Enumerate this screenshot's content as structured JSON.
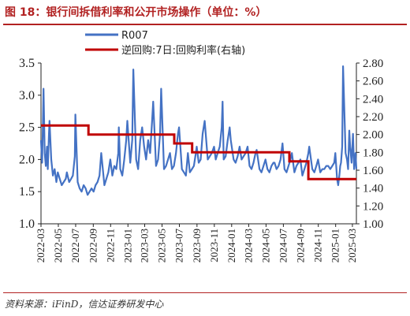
{
  "header": {
    "title": "图 18：银行间拆借利率和公开市场操作（单位：%）"
  },
  "footer": {
    "source": "资料来源：iFinD，信达证券研发中心"
  },
  "chart_data": {
    "type": "line",
    "title": "图 18：银行间拆借利率和公开市场操作（单位：%）",
    "xlabel": "",
    "ylabel": "",
    "x_ticks": [
      "2022-03",
      "2022-05",
      "2022-07",
      "2022-09",
      "2022-11",
      "2023-01",
      "2023-03",
      "2023-05",
      "2023-07",
      "2023-09",
      "2023-11",
      "2024-01",
      "2024-03",
      "2024-05",
      "2024-07",
      "2024-09",
      "2024-11",
      "2025-01",
      "2025-03"
    ],
    "y_left": {
      "ylim": [
        1.0,
        3.5
      ],
      "ticks": [
        "1.0",
        "1.5",
        "2.0",
        "2.5",
        "3.0",
        "3.5"
      ]
    },
    "y_right": {
      "ylim": [
        1.0,
        2.8
      ],
      "ticks": [
        "1.00",
        "1.20",
        "1.40",
        "1.60",
        "1.80",
        "2.00",
        "2.20",
        "2.40",
        "2.60",
        "2.80"
      ]
    },
    "grid": false,
    "legend": "top-center",
    "colors": {
      "r007": "#4472c4",
      "rr7": "#c00000"
    },
    "series": [
      {
        "name": "R007",
        "axis": "left",
        "x": [
          "2022-03-01",
          "2022-03-05",
          "2022-03-08",
          "2022-03-10",
          "2022-03-14",
          "2022-03-18",
          "2022-03-22",
          "2022-03-25",
          "2022-03-29",
          "2022-03-31",
          "2022-04-06",
          "2022-04-12",
          "2022-04-18",
          "2022-04-24",
          "2022-04-29",
          "2022-05-06",
          "2022-05-13",
          "2022-05-20",
          "2022-05-27",
          "2022-05-31",
          "2022-06-08",
          "2022-06-15",
          "2022-06-21",
          "2022-06-28",
          "2022-06-30",
          "2022-07-08",
          "2022-07-15",
          "2022-07-22",
          "2022-07-29",
          "2022-08-05",
          "2022-08-12",
          "2022-08-19",
          "2022-08-26",
          "2022-09-02",
          "2022-09-09",
          "2022-09-16",
          "2022-09-23",
          "2022-09-29",
          "2022-10-10",
          "2022-10-17",
          "2022-10-24",
          "2022-10-31",
          "2022-11-07",
          "2022-11-14",
          "2022-11-21",
          "2022-11-28",
          "2022-11-30",
          "2022-12-05",
          "2022-12-12",
          "2022-12-19",
          "2022-12-26",
          "2022-12-30",
          "2023-01-09",
          "2023-01-16",
          "2023-01-20",
          "2023-01-30",
          "2023-02-06",
          "2023-02-13",
          "2023-02-20",
          "2023-02-27",
          "2023-03-06",
          "2023-03-13",
          "2023-03-20",
          "2023-03-27",
          "2023-03-31",
          "2023-04-10",
          "2023-04-17",
          "2023-04-24",
          "2023-04-28",
          "2023-05-08",
          "2023-05-15",
          "2023-05-22",
          "2023-05-29",
          "2023-06-05",
          "2023-06-12",
          "2023-06-19",
          "2023-06-26",
          "2023-06-30",
          "2023-07-10",
          "2023-07-17",
          "2023-07-24",
          "2023-07-31",
          "2023-08-07",
          "2023-08-14",
          "2023-08-21",
          "2023-08-28",
          "2023-08-31",
          "2023-09-07",
          "2023-09-14",
          "2023-09-21",
          "2023-09-28",
          "2023-10-09",
          "2023-10-16",
          "2023-10-23",
          "2023-10-31",
          "2023-11-06",
          "2023-11-13",
          "2023-11-20",
          "2023-11-27",
          "2023-11-30",
          "2023-12-04",
          "2023-12-11",
          "2023-12-18",
          "2023-12-25",
          "2023-12-29",
          "2024-01-08",
          "2024-01-15",
          "2024-01-22",
          "2024-01-29",
          "2024-02-05",
          "2024-02-19",
          "2024-02-26",
          "2024-03-04",
          "2024-03-11",
          "2024-03-18",
          "2024-03-25",
          "2024-03-29",
          "2024-04-08",
          "2024-04-15",
          "2024-04-22",
          "2024-04-29",
          "2024-05-06",
          "2024-05-13",
          "2024-05-20",
          "2024-05-27",
          "2024-05-31",
          "2024-06-07",
          "2024-06-14",
          "2024-06-21",
          "2024-06-28",
          "2024-07-05",
          "2024-07-12",
          "2024-07-19",
          "2024-07-26",
          "2024-07-31",
          "2024-08-09",
          "2024-08-16",
          "2024-08-23",
          "2024-08-30",
          "2024-09-06",
          "2024-09-13",
          "2024-09-20",
          "2024-09-27",
          "2024-09-30",
          "2024-10-11",
          "2024-10-18",
          "2024-10-25",
          "2024-10-31",
          "2024-11-08",
          "2024-11-15",
          "2024-11-22",
          "2024-11-29",
          "2024-12-06",
          "2024-12-13",
          "2024-12-20",
          "2024-12-27",
          "2024-12-31",
          "2025-01-06",
          "2025-01-10",
          "2025-01-14",
          "2025-01-17",
          "2025-01-20",
          "2025-01-24",
          "2025-01-27",
          "2025-02-05",
          "2025-02-10",
          "2025-02-14",
          "2025-02-18",
          "2025-02-21",
          "2025-02-26",
          "2025-03-03",
          "2025-03-07",
          "2025-03-12",
          "2025-03-15"
        ],
        "values": [
          2.3,
          1.95,
          2.6,
          3.1,
          2.1,
          1.9,
          2.2,
          1.85,
          2.4,
          2.6,
          2.0,
          1.75,
          1.85,
          1.65,
          1.8,
          1.7,
          1.6,
          1.65,
          1.7,
          1.8,
          1.65,
          1.7,
          1.75,
          2.05,
          2.7,
          1.65,
          1.55,
          1.5,
          1.6,
          1.55,
          1.45,
          1.5,
          1.55,
          1.5,
          1.6,
          1.65,
          1.75,
          2.1,
          1.6,
          1.7,
          1.8,
          2.0,
          1.75,
          1.9,
          1.85,
          2.1,
          2.5,
          1.85,
          1.75,
          2.0,
          2.3,
          2.6,
          1.95,
          2.3,
          3.4,
          2.0,
          1.85,
          2.3,
          2.5,
          2.2,
          2.0,
          2.3,
          2.1,
          2.6,
          2.9,
          1.9,
          2.0,
          2.4,
          3.1,
          1.85,
          1.9,
          2.0,
          2.1,
          1.85,
          1.9,
          2.1,
          2.4,
          2.5,
          1.85,
          1.8,
          1.75,
          2.1,
          1.8,
          1.85,
          1.9,
          2.1,
          2.2,
          1.95,
          2.0,
          2.4,
          2.6,
          2.0,
          2.05,
          2.1,
          2.2,
          2.0,
          2.1,
          2.2,
          2.5,
          2.9,
          2.0,
          2.05,
          2.3,
          2.5,
          2.3,
          2.0,
          1.95,
          2.05,
          2.2,
          2.0,
          2.1,
          2.2,
          1.9,
          1.85,
          1.95,
          2.1,
          2.15,
          1.85,
          1.8,
          1.9,
          2.0,
          1.85,
          1.8,
          1.9,
          1.95,
          1.95,
          1.85,
          1.9,
          2.0,
          2.25,
          1.85,
          1.8,
          1.9,
          2.0,
          2.1,
          1.8,
          1.9,
          1.95,
          2.0,
          1.75,
          1.85,
          1.95,
          2.1,
          2.2,
          1.85,
          1.8,
          1.9,
          2.0,
          1.8,
          1.85,
          1.85,
          1.9,
          1.9,
          1.85,
          1.9,
          1.95,
          2.1,
          1.7,
          1.6,
          1.75,
          1.9,
          1.95,
          2.2,
          3.45,
          2.1,
          2.0,
          1.85,
          2.45,
          2.2,
          1.95,
          2.4,
          1.85,
          2.1,
          1.85
        ]
      },
      {
        "name": "逆回购:7日:回购利率(右轴)",
        "axis": "right",
        "step": true,
        "x": [
          "2022-03-01",
          "2022-08-15",
          "2023-06-13",
          "2023-08-15",
          "2024-07-22",
          "2024-09-27",
          "2025-03-15"
        ],
        "values": [
          2.1,
          2.0,
          1.9,
          1.8,
          1.7,
          1.5,
          1.5
        ]
      }
    ]
  }
}
